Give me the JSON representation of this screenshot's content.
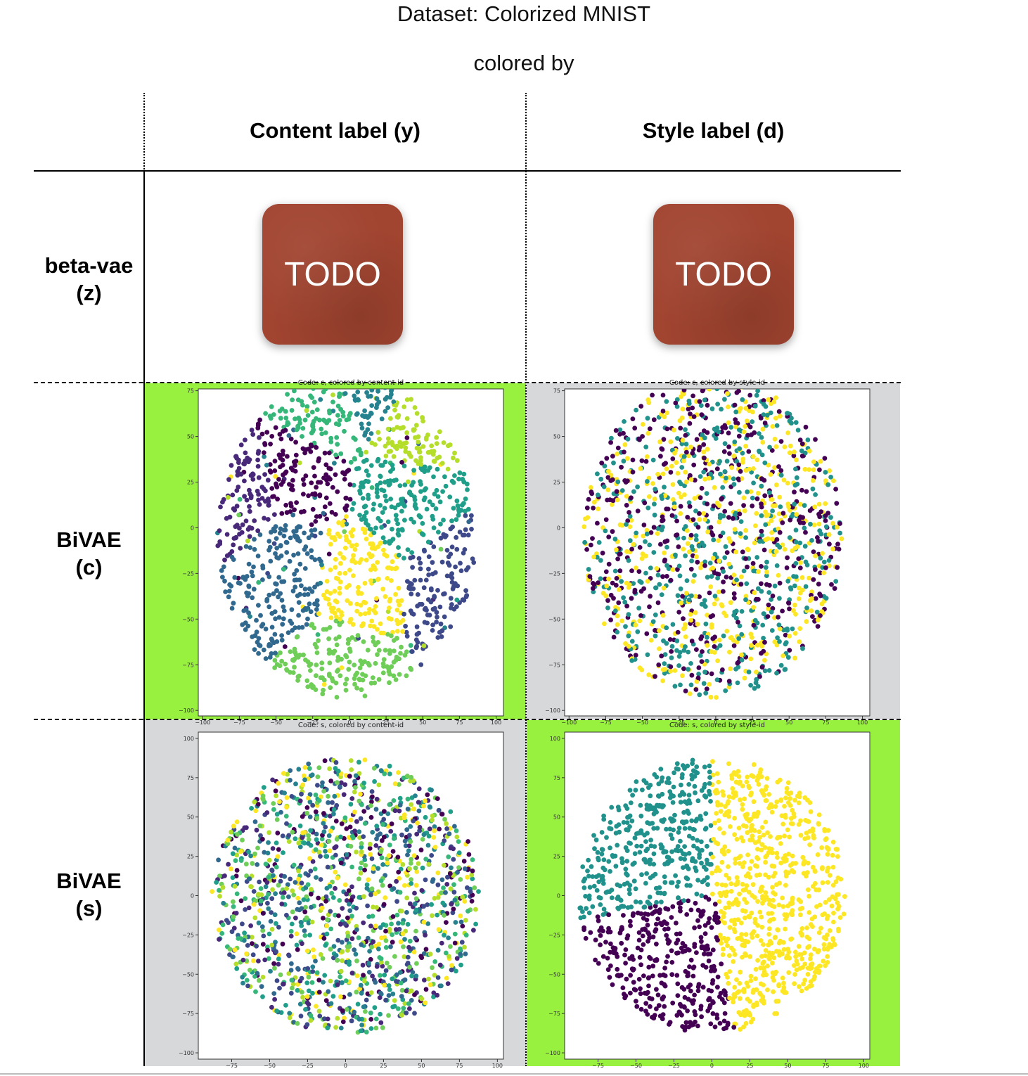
{
  "header": {
    "title": "Dataset: Colorized MNIST",
    "subtitle": "colored by"
  },
  "columns": [
    {
      "label": "Content label (y)"
    },
    {
      "label": "Style label (d)"
    }
  ],
  "rows": [
    {
      "label": "beta-vae\n(z)"
    },
    {
      "label": "BiVAE\n(c)"
    },
    {
      "label": "BiVAE\n(s)"
    }
  ],
  "placeholders": [
    "TODO",
    "TODO"
  ],
  "colors": {
    "highlight": "#99f13f",
    "neutral": "#d7d8da",
    "todo_tile": "#a14430"
  },
  "chart_data": [
    {
      "type": "scatter",
      "title": "Code: c, colored by content-id",
      "xticks": [
        -100,
        -75,
        -50,
        -25,
        0,
        25,
        50,
        75,
        100
      ],
      "yticks": [
        -100,
        -75,
        -50,
        -25,
        0,
        25,
        50,
        75
      ],
      "xlim": [
        -103,
        105
      ],
      "ylim": [
        -103,
        76
      ],
      "colormap": "viridis",
      "num_classes": 10,
      "layout": "clustered",
      "clusters": [
        {
          "class": 0,
          "center": [
            -35,
            30
          ]
        },
        {
          "class": 1,
          "center": [
            -75,
            20
          ]
        },
        {
          "class": 2,
          "center": [
            70,
            -30
          ]
        },
        {
          "class": 3,
          "center": [
            -45,
            -25
          ]
        },
        {
          "class": 4,
          "center": [
            15,
            80
          ]
        },
        {
          "class": 5,
          "center": [
            40,
            15
          ]
        },
        {
          "class": 6,
          "center": [
            -20,
            65
          ]
        },
        {
          "class": 7,
          "center": [
            -5,
            -75
          ]
        },
        {
          "class": 8,
          "center": [
            45,
            55
          ]
        },
        {
          "class": 9,
          "center": [
            5,
            -30
          ]
        }
      ]
    },
    {
      "type": "scatter",
      "title": "Code: c, colored by style-id",
      "xticks": [
        -100,
        -75,
        -50,
        -25,
        0,
        25,
        50,
        75,
        100
      ],
      "yticks": [
        -100,
        -75,
        -50,
        -25,
        0,
        25,
        50,
        75
      ],
      "xlim": [
        -103,
        105
      ],
      "ylim": [
        -103,
        76
      ],
      "colormap": "viridis",
      "num_classes": 3,
      "layout": "mixed"
    },
    {
      "type": "scatter",
      "title": "Code: s, colored by content-id",
      "xticks": [
        -75,
        -50,
        -25,
        0,
        25,
        50,
        75,
        100
      ],
      "yticks": [
        -100,
        -75,
        -50,
        -25,
        0,
        25,
        50,
        75,
        100
      ],
      "xlim": [
        -97,
        104
      ],
      "ylim": [
        -104,
        104
      ],
      "colormap": "viridis",
      "num_classes": 10,
      "layout": "mixed"
    },
    {
      "type": "scatter",
      "title": "Code: s, colored by style-id",
      "xticks": [
        -75,
        -50,
        -25,
        0,
        25,
        50,
        75,
        100
      ],
      "yticks": [
        -100,
        -75,
        -50,
        -25,
        0,
        25,
        50,
        75,
        100
      ],
      "xlim": [
        -97,
        104
      ],
      "ylim": [
        -104,
        104
      ],
      "colormap": "viridis",
      "num_classes": 3,
      "layout": "sectors",
      "sectors": [
        {
          "class": 1,
          "region": "upper-left"
        },
        {
          "class": 2,
          "region": "right"
        },
        {
          "class": 0,
          "region": "lower-center"
        }
      ]
    }
  ]
}
